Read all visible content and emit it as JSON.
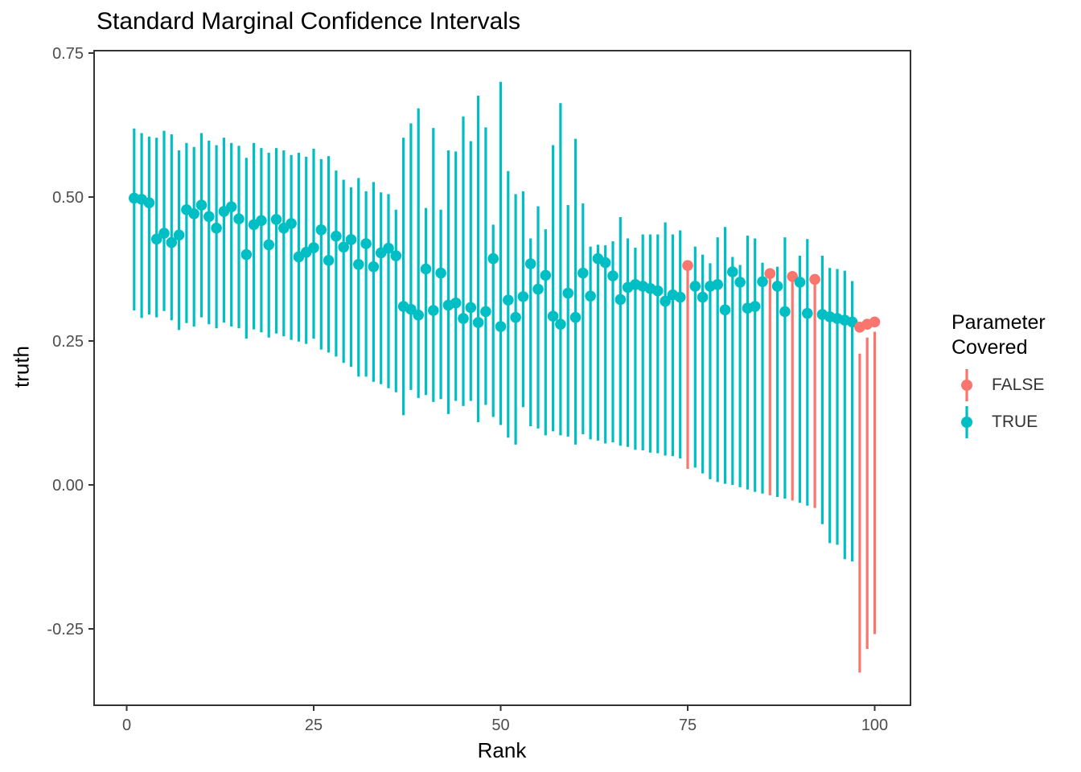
{
  "title": "Standard Marginal Confidence Intervals",
  "legend": {
    "title_lines": [
      "Parameter",
      "Covered"
    ],
    "items": [
      {
        "label": "FALSE",
        "covered": false,
        "color": "#F8766D"
      },
      {
        "label": "TRUE",
        "covered": true,
        "color": "#00BFC4"
      }
    ]
  },
  "colors": {
    "covered_true": "#00BFC4",
    "covered_false": "#F8766D",
    "panel_border": "#333333",
    "axis_line": "#333333",
    "axis_text": "#4D4D4D",
    "text": "#000000",
    "background": "#FFFFFF"
  },
  "chart_data": {
    "type": "scatter",
    "mark": "pointrange",
    "title": "Standard Marginal Confidence Intervals",
    "xlabel": "Rank",
    "ylabel": "truth",
    "legend_title": "Parameter Covered",
    "legend_position": "right",
    "grid": false,
    "xlim": [
      -4.5,
      105
    ],
    "ylim": [
      -0.384,
      0.754
    ],
    "x_ticks": [
      {
        "label": "0",
        "value": 0
      },
      {
        "label": "25",
        "value": 25
      },
      {
        "label": "50",
        "value": 50
      },
      {
        "label": "75",
        "value": 75
      },
      {
        "label": "100",
        "value": 100
      }
    ],
    "y_ticks": [
      {
        "label": "0.75",
        "value": 0.75
      },
      {
        "label": "0.50",
        "value": 0.5
      },
      {
        "label": "0.25",
        "value": 0.25
      },
      {
        "label": "0.00",
        "value": 0.0
      },
      {
        "label": "-0.25",
        "value": -0.25
      }
    ],
    "points": [
      {
        "x": 1,
        "y": 0.498,
        "lo": 0.303,
        "hi": 0.619,
        "covered": true
      },
      {
        "x": 2,
        "y": 0.496,
        "lo": 0.29,
        "hi": 0.611,
        "covered": true
      },
      {
        "x": 3,
        "y": 0.49,
        "lo": 0.296,
        "hi": 0.605,
        "covered": true
      },
      {
        "x": 4,
        "y": 0.427,
        "lo": 0.291,
        "hi": 0.603,
        "covered": true
      },
      {
        "x": 5,
        "y": 0.437,
        "lo": 0.302,
        "hi": 0.615,
        "covered": true
      },
      {
        "x": 6,
        "y": 0.421,
        "lo": 0.286,
        "hi": 0.609,
        "covered": true
      },
      {
        "x": 7,
        "y": 0.434,
        "lo": 0.269,
        "hi": 0.581,
        "covered": true
      },
      {
        "x": 8,
        "y": 0.478,
        "lo": 0.281,
        "hi": 0.594,
        "covered": true
      },
      {
        "x": 9,
        "y": 0.471,
        "lo": 0.275,
        "hi": 0.587,
        "covered": true
      },
      {
        "x": 10,
        "y": 0.486,
        "lo": 0.291,
        "hi": 0.611,
        "covered": true
      },
      {
        "x": 11,
        "y": 0.466,
        "lo": 0.279,
        "hi": 0.598,
        "covered": true
      },
      {
        "x": 12,
        "y": 0.446,
        "lo": 0.272,
        "hi": 0.59,
        "covered": true
      },
      {
        "x": 13,
        "y": 0.475,
        "lo": 0.282,
        "hi": 0.603,
        "covered": true
      },
      {
        "x": 14,
        "y": 0.483,
        "lo": 0.275,
        "hi": 0.594,
        "covered": true
      },
      {
        "x": 15,
        "y": 0.462,
        "lo": 0.272,
        "hi": 0.589,
        "covered": true
      },
      {
        "x": 16,
        "y": 0.4,
        "lo": 0.254,
        "hi": 0.568,
        "covered": true
      },
      {
        "x": 17,
        "y": 0.452,
        "lo": 0.27,
        "hi": 0.594,
        "covered": true
      },
      {
        "x": 18,
        "y": 0.459,
        "lo": 0.265,
        "hi": 0.585,
        "covered": true
      },
      {
        "x": 19,
        "y": 0.417,
        "lo": 0.256,
        "hi": 0.577,
        "covered": true
      },
      {
        "x": 20,
        "y": 0.461,
        "lo": 0.263,
        "hi": 0.585,
        "covered": true
      },
      {
        "x": 21,
        "y": 0.446,
        "lo": 0.258,
        "hi": 0.581,
        "covered": true
      },
      {
        "x": 22,
        "y": 0.454,
        "lo": 0.252,
        "hi": 0.573,
        "covered": true
      },
      {
        "x": 23,
        "y": 0.396,
        "lo": 0.249,
        "hi": 0.577,
        "covered": true
      },
      {
        "x": 24,
        "y": 0.404,
        "lo": 0.245,
        "hi": 0.57,
        "covered": true
      },
      {
        "x": 25,
        "y": 0.412,
        "lo": 0.254,
        "hi": 0.584,
        "covered": true
      },
      {
        "x": 26,
        "y": 0.443,
        "lo": 0.235,
        "hi": 0.566,
        "covered": true
      },
      {
        "x": 27,
        "y": 0.39,
        "lo": 0.23,
        "hi": 0.571,
        "covered": true
      },
      {
        "x": 28,
        "y": 0.432,
        "lo": 0.223,
        "hi": 0.546,
        "covered": true
      },
      {
        "x": 29,
        "y": 0.413,
        "lo": 0.212,
        "hi": 0.53,
        "covered": true
      },
      {
        "x": 30,
        "y": 0.426,
        "lo": 0.205,
        "hi": 0.517,
        "covered": true
      },
      {
        "x": 31,
        "y": 0.383,
        "lo": 0.188,
        "hi": 0.533,
        "covered": true
      },
      {
        "x": 32,
        "y": 0.419,
        "lo": 0.188,
        "hi": 0.51,
        "covered": true
      },
      {
        "x": 33,
        "y": 0.379,
        "lo": 0.179,
        "hi": 0.526,
        "covered": true
      },
      {
        "x": 34,
        "y": 0.403,
        "lo": 0.175,
        "hi": 0.508,
        "covered": true
      },
      {
        "x": 35,
        "y": 0.411,
        "lo": 0.168,
        "hi": 0.505,
        "covered": true
      },
      {
        "x": 36,
        "y": 0.398,
        "lo": 0.161,
        "hi": 0.478,
        "covered": true
      },
      {
        "x": 37,
        "y": 0.31,
        "lo": 0.121,
        "hi": 0.603,
        "covered": true
      },
      {
        "x": 38,
        "y": 0.305,
        "lo": 0.165,
        "hi": 0.628,
        "covered": true
      },
      {
        "x": 39,
        "y": 0.295,
        "lo": 0.151,
        "hi": 0.654,
        "covered": true
      },
      {
        "x": 40,
        "y": 0.375,
        "lo": 0.156,
        "hi": 0.481,
        "covered": true
      },
      {
        "x": 41,
        "y": 0.303,
        "lo": 0.144,
        "hi": 0.62,
        "covered": true
      },
      {
        "x": 42,
        "y": 0.368,
        "lo": 0.149,
        "hi": 0.478,
        "covered": true
      },
      {
        "x": 43,
        "y": 0.312,
        "lo": 0.123,
        "hi": 0.581,
        "covered": true
      },
      {
        "x": 44,
        "y": 0.316,
        "lo": 0.146,
        "hi": 0.579,
        "covered": true
      },
      {
        "x": 45,
        "y": 0.289,
        "lo": 0.137,
        "hi": 0.64,
        "covered": true
      },
      {
        "x": 46,
        "y": 0.308,
        "lo": 0.146,
        "hi": 0.597,
        "covered": true
      },
      {
        "x": 47,
        "y": 0.282,
        "lo": 0.109,
        "hi": 0.676,
        "covered": true
      },
      {
        "x": 48,
        "y": 0.301,
        "lo": 0.139,
        "hi": 0.621,
        "covered": true
      },
      {
        "x": 49,
        "y": 0.393,
        "lo": 0.118,
        "hi": 0.452,
        "covered": true
      },
      {
        "x": 50,
        "y": 0.275,
        "lo": 0.104,
        "hi": 0.7,
        "covered": true
      },
      {
        "x": 51,
        "y": 0.321,
        "lo": 0.082,
        "hi": 0.545,
        "covered": true
      },
      {
        "x": 52,
        "y": 0.291,
        "lo": 0.07,
        "hi": 0.505,
        "covered": true
      },
      {
        "x": 53,
        "y": 0.327,
        "lo": 0.135,
        "hi": 0.51,
        "covered": true
      },
      {
        "x": 54,
        "y": 0.384,
        "lo": 0.102,
        "hi": 0.428,
        "covered": true
      },
      {
        "x": 55,
        "y": 0.34,
        "lo": 0.098,
        "hi": 0.484,
        "covered": true
      },
      {
        "x": 56,
        "y": 0.364,
        "lo": 0.086,
        "hi": 0.444,
        "covered": true
      },
      {
        "x": 57,
        "y": 0.293,
        "lo": 0.093,
        "hi": 0.59,
        "covered": true
      },
      {
        "x": 58,
        "y": 0.279,
        "lo": 0.086,
        "hi": 0.663,
        "covered": true
      },
      {
        "x": 59,
        "y": 0.333,
        "lo": 0.084,
        "hi": 0.486,
        "covered": true
      },
      {
        "x": 60,
        "y": 0.291,
        "lo": 0.07,
        "hi": 0.601,
        "covered": true
      },
      {
        "x": 61,
        "y": 0.368,
        "lo": 0.088,
        "hi": 0.489,
        "covered": true
      },
      {
        "x": 62,
        "y": 0.328,
        "lo": 0.079,
        "hi": 0.414,
        "covered": true
      },
      {
        "x": 63,
        "y": 0.393,
        "lo": 0.077,
        "hi": 0.417,
        "covered": true
      },
      {
        "x": 64,
        "y": 0.386,
        "lo": 0.072,
        "hi": 0.416,
        "covered": true
      },
      {
        "x": 65,
        "y": 0.363,
        "lo": 0.074,
        "hi": 0.423,
        "covered": true
      },
      {
        "x": 66,
        "y": 0.322,
        "lo": 0.068,
        "hi": 0.465,
        "covered": true
      },
      {
        "x": 67,
        "y": 0.343,
        "lo": 0.066,
        "hi": 0.428,
        "covered": true
      },
      {
        "x": 68,
        "y": 0.348,
        "lo": 0.061,
        "hi": 0.412,
        "covered": true
      },
      {
        "x": 69,
        "y": 0.345,
        "lo": 0.06,
        "hi": 0.435,
        "covered": true
      },
      {
        "x": 70,
        "y": 0.341,
        "lo": 0.056,
        "hi": 0.435,
        "covered": true
      },
      {
        "x": 71,
        "y": 0.337,
        "lo": 0.055,
        "hi": 0.435,
        "covered": true
      },
      {
        "x": 72,
        "y": 0.319,
        "lo": 0.051,
        "hi": 0.456,
        "covered": true
      },
      {
        "x": 73,
        "y": 0.33,
        "lo": 0.05,
        "hi": 0.435,
        "covered": true
      },
      {
        "x": 74,
        "y": 0.326,
        "lo": 0.046,
        "hi": 0.442,
        "covered": true
      },
      {
        "x": 75,
        "y": 0.381,
        "lo": 0.028,
        "hi": 0.376,
        "covered": false
      },
      {
        "x": 76,
        "y": 0.345,
        "lo": 0.03,
        "hi": 0.414,
        "covered": true
      },
      {
        "x": 77,
        "y": 0.326,
        "lo": 0.02,
        "hi": 0.4,
        "covered": true
      },
      {
        "x": 78,
        "y": 0.345,
        "lo": 0.01,
        "hi": 0.385,
        "covered": true
      },
      {
        "x": 79,
        "y": 0.348,
        "lo": 0.005,
        "hi": 0.43,
        "covered": true
      },
      {
        "x": 80,
        "y": 0.304,
        "lo": 0.002,
        "hi": 0.448,
        "covered": true
      },
      {
        "x": 81,
        "y": 0.37,
        "lo": 0.0,
        "hi": 0.396,
        "covered": true
      },
      {
        "x": 82,
        "y": 0.352,
        "lo": -0.004,
        "hi": 0.382,
        "covered": true
      },
      {
        "x": 83,
        "y": 0.307,
        "lo": -0.008,
        "hi": 0.433,
        "covered": true
      },
      {
        "x": 84,
        "y": 0.31,
        "lo": -0.012,
        "hi": 0.428,
        "covered": true
      },
      {
        "x": 85,
        "y": 0.353,
        "lo": -0.015,
        "hi": 0.386,
        "covered": true
      },
      {
        "x": 86,
        "y": 0.367,
        "lo": -0.018,
        "hi": 0.361,
        "covered": false
      },
      {
        "x": 87,
        "y": 0.345,
        "lo": -0.021,
        "hi": 0.379,
        "covered": true
      },
      {
        "x": 88,
        "y": 0.301,
        "lo": -0.024,
        "hi": 0.43,
        "covered": true
      },
      {
        "x": 89,
        "y": 0.362,
        "lo": -0.027,
        "hi": 0.356,
        "covered": false
      },
      {
        "x": 90,
        "y": 0.352,
        "lo": -0.031,
        "hi": 0.398,
        "covered": true
      },
      {
        "x": 91,
        "y": 0.298,
        "lo": -0.036,
        "hi": 0.427,
        "covered": true
      },
      {
        "x": 92,
        "y": 0.357,
        "lo": -0.04,
        "hi": 0.351,
        "covered": false
      },
      {
        "x": 93,
        "y": 0.296,
        "lo": -0.068,
        "hi": 0.398,
        "covered": true
      },
      {
        "x": 94,
        "y": 0.292,
        "lo": -0.101,
        "hi": 0.377,
        "covered": true
      },
      {
        "x": 95,
        "y": 0.289,
        "lo": -0.104,
        "hi": 0.375,
        "covered": true
      },
      {
        "x": 96,
        "y": 0.286,
        "lo": -0.129,
        "hi": 0.372,
        "covered": true
      },
      {
        "x": 97,
        "y": 0.283,
        "lo": -0.133,
        "hi": 0.354,
        "covered": true
      },
      {
        "x": 98,
        "y": 0.274,
        "lo": -0.326,
        "hi": 0.228,
        "covered": false
      },
      {
        "x": 99,
        "y": 0.279,
        "lo": -0.285,
        "hi": 0.256,
        "covered": false
      },
      {
        "x": 100,
        "y": 0.283,
        "lo": -0.259,
        "hi": 0.266,
        "covered": false
      }
    ]
  }
}
